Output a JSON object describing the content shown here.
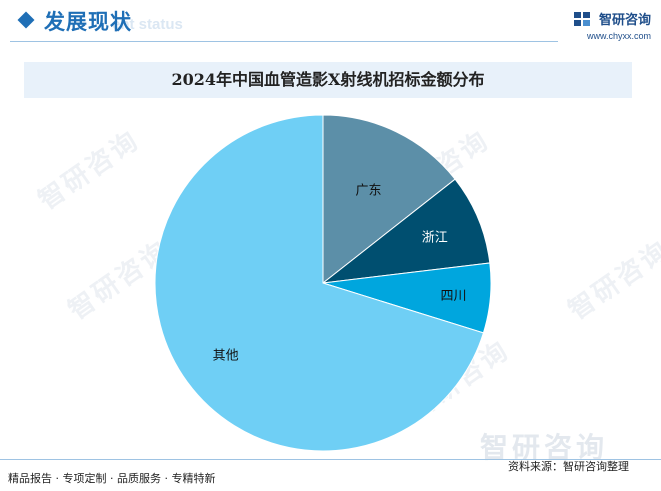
{
  "header": {
    "section_title": "发展现状",
    "section_subtitle": "ent status",
    "logo_name": "智研咨询",
    "logo_url": "www.chyxx.com"
  },
  "watermark": "智研咨询",
  "chart_data": {
    "type": "pie",
    "title": "2024年中国血管造影X射线机招标金额分布",
    "start_angle": "12 o'clock, clockwise",
    "slices": [
      {
        "label": "广东",
        "value": 14.4,
        "color": "#5c8fa8"
      },
      {
        "label": "浙江",
        "value": 8.7,
        "color": "#004f70"
      },
      {
        "label": "四川",
        "value": 6.7,
        "color": "#00a6de"
      },
      {
        "label": "其他",
        "value": 70.2,
        "color": "#6fcff5"
      }
    ]
  },
  "footer": {
    "tagline": "精品报告 · 专项定制 · 品质服务 · 专精特新",
    "source": "资料来源：智研咨询整理"
  }
}
